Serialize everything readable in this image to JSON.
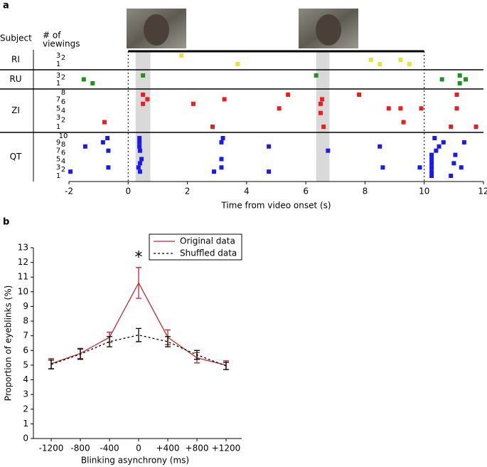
{
  "chart_data": [
    {
      "type": "raster",
      "panel_label": "a",
      "subject_header": "Subject",
      "viewings_header": [
        "# of",
        "viewings"
      ],
      "xlabel": "Time from video onset (s)",
      "xlim": [
        -2,
        12
      ],
      "xticks": [
        -2,
        0,
        2,
        4,
        6,
        8,
        10,
        12
      ],
      "video_span": [
        0,
        10
      ],
      "highlight_spans": [
        [
          0.25,
          0.75
        ],
        [
          6.35,
          6.8
        ]
      ],
      "series": [
        {
          "name": "RI",
          "color": "#e6e62e",
          "viewings": [
            1,
            2,
            3
          ],
          "x": [
            1.8,
            3.7,
            8.2,
            8.5,
            9.2,
            9.5
          ],
          "y": [
            3,
            1,
            2,
            1,
            2,
            1
          ]
        },
        {
          "name": "RU",
          "color": "#1a961a",
          "viewings": [
            1,
            2,
            3
          ],
          "x": [
            -1.5,
            -1.2,
            0.5,
            6.35,
            10.6,
            11.2,
            11.4,
            11.2
          ],
          "y": [
            2,
            1,
            3,
            3,
            2,
            3,
            2,
            1
          ]
        },
        {
          "name": "ZI",
          "color": "#ee1c1c",
          "viewings": [
            1,
            2,
            3,
            4,
            5,
            6,
            7,
            8
          ],
          "x": [
            0.5,
            0.65,
            0.5,
            2.2,
            3.25,
            5.4,
            5.1,
            6.55,
            6.5,
            6.5,
            6.6,
            -0.8,
            2.85,
            7.8,
            8.8,
            9.2,
            9.3,
            9.9,
            11.1,
            11.1,
            10.9,
            11.75
          ],
          "y": [
            8,
            7,
            6,
            6,
            7,
            8,
            5,
            7,
            6,
            4,
            1,
            2,
            1,
            8,
            5,
            5,
            2,
            5,
            8,
            5,
            1,
            1
          ]
        },
        {
          "name": "QT",
          "color": "#1a1aee",
          "viewings": [
            1,
            2,
            3,
            4,
            5,
            6,
            7,
            8,
            9,
            10
          ],
          "x": [
            -0.7,
            -0.85,
            -1.45,
            -0.67,
            -0.67,
            -1.95,
            0.38,
            0.38,
            0.38,
            0.4,
            0.45,
            0.4,
            0.35,
            0.4,
            3.2,
            3.15,
            3.15,
            3.15,
            2.9,
            4.75,
            4.75,
            6.75,
            8.5,
            8.6,
            9.85,
            10.35,
            10.5,
            10.4,
            10.25,
            10.25,
            10.25,
            10.25,
            10.25,
            10.25,
            10.65,
            11.05,
            11.0,
            11.25,
            11.35,
            10.9
          ],
          "y": [
            10,
            9,
            8,
            7,
            3,
            2,
            10,
            9,
            8,
            7,
            5,
            4,
            3,
            2,
            10,
            9,
            5,
            3,
            2,
            8,
            2,
            7,
            8,
            3,
            3,
            10,
            8,
            7,
            6,
            5,
            4,
            3,
            2,
            1,
            9,
            6,
            4,
            3,
            9,
            1
          ]
        }
      ]
    },
    {
      "type": "line",
      "panel_label": "b",
      "xlabel": "Blinking asynchrony (ms)",
      "ylabel": "Proportion of eyeblinks (%)",
      "categories": [
        "-1200",
        "-800",
        "-400",
        "0",
        "+400",
        "+800",
        "+1200"
      ],
      "ylim": [
        0,
        13
      ],
      "yticks": [
        0,
        1,
        2,
        3,
        4,
        5,
        6,
        7,
        8,
        9,
        10,
        11,
        12,
        13
      ],
      "series": [
        {
          "name": "Original data",
          "color": "#c0282d",
          "dashed": false,
          "values": [
            5.1,
            5.8,
            6.9,
            10.6,
            6.9,
            5.5,
            5.0
          ],
          "errors": [
            0.35,
            0.35,
            0.35,
            1.05,
            0.5,
            0.35,
            0.3
          ]
        },
        {
          "name": "Shuffled data",
          "color": "#000000",
          "dashed": true,
          "values": [
            5.05,
            5.75,
            6.6,
            7.05,
            6.6,
            5.7,
            4.95
          ],
          "errors": [
            0.3,
            0.35,
            0.35,
            0.45,
            0.35,
            0.3,
            0.25
          ]
        }
      ],
      "annotations": [
        {
          "text": "*",
          "x": "0",
          "y": 12.5
        }
      ]
    }
  ]
}
